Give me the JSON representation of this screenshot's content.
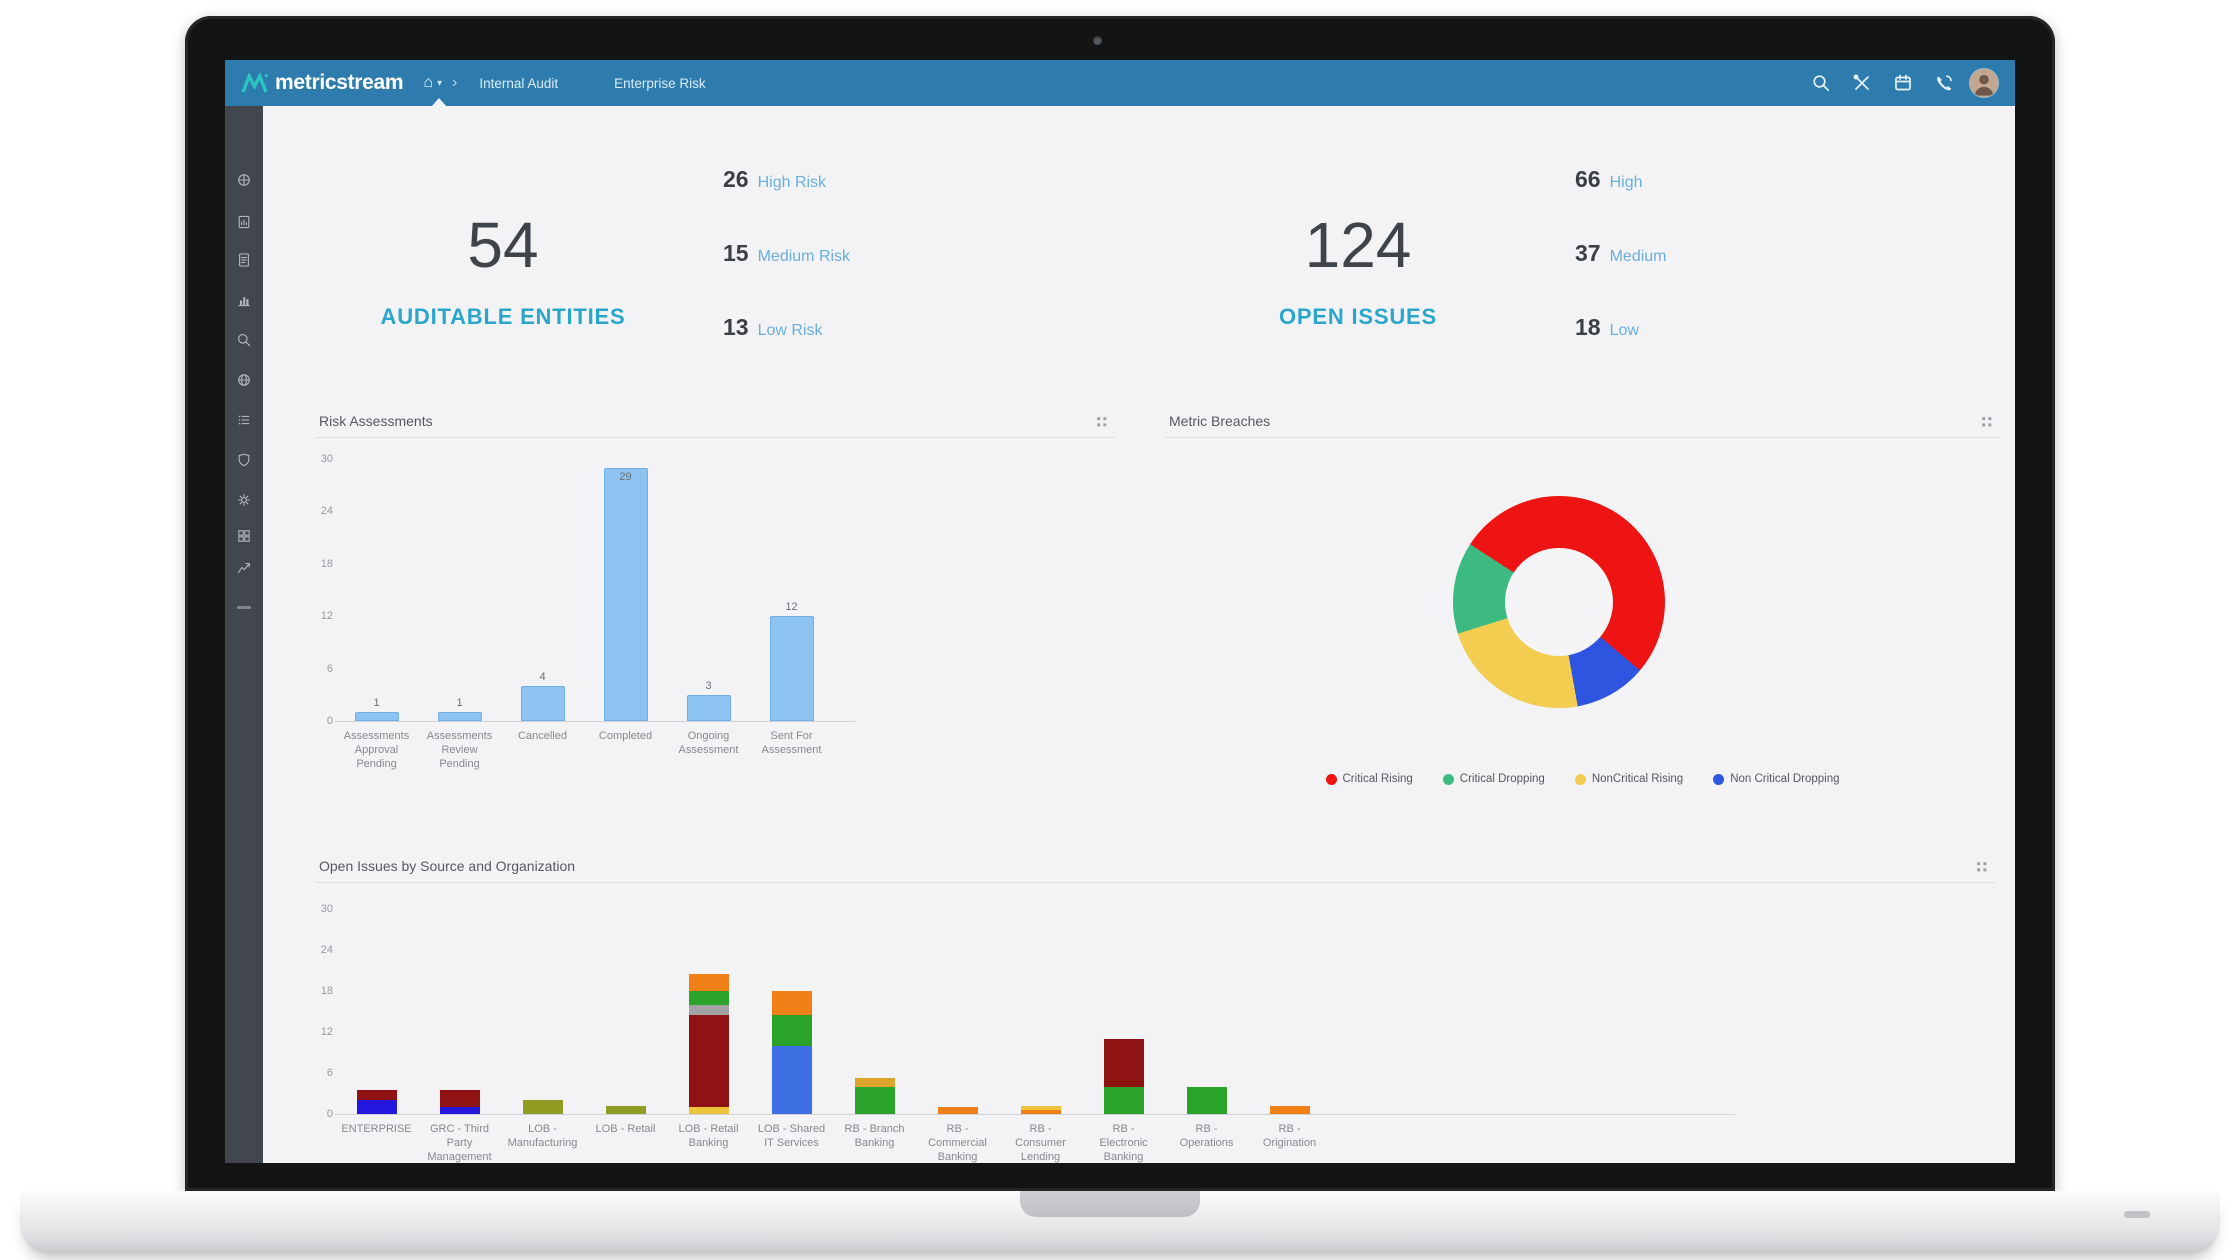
{
  "navbar": {
    "logo_text": "metricstream",
    "nav_items": [
      "Internal Audit",
      "Enterprise Risk"
    ],
    "right_icons": [
      "search",
      "tools",
      "calendar",
      "phone"
    ],
    "colors": {
      "bar": "#2d7cad",
      "logo_teal": "#2cc5c0"
    }
  },
  "sidebar": {
    "icons": [
      "dashboard",
      "report",
      "document",
      "chart",
      "search",
      "globe",
      "list",
      "shield",
      "settings",
      "grid",
      "trend"
    ]
  },
  "kpis": [
    {
      "value": "54",
      "label": "AUDITABLE ENTITIES",
      "breakdown": [
        {
          "value": "26",
          "label": "High Risk"
        },
        {
          "value": "15",
          "label": "Medium Risk"
        },
        {
          "value": "13",
          "label": "Low Risk"
        }
      ]
    },
    {
      "value": "124",
      "label": "OPEN ISSUES",
      "breakdown": [
        {
          "value": "66",
          "label": "High"
        },
        {
          "value": "37",
          "label": "Medium"
        },
        {
          "value": "18",
          "label": "Low"
        }
      ]
    }
  ],
  "chart_data": [
    {
      "type": "bar",
      "title": "Risk Assessments",
      "categories": [
        "Assessments Approval Pending",
        "Assessments Review Pending",
        "Cancelled",
        "Completed",
        "Ongoing Assessment",
        "Sent For Assessment"
      ],
      "values": [
        1,
        1,
        4,
        29,
        3,
        12
      ],
      "ylim": [
        0,
        30
      ],
      "yticks": [
        0,
        6,
        12,
        18,
        24,
        30
      ],
      "bar_color": "#8dc3f0",
      "bar_border": "#70aee6",
      "grid": false,
      "xlabel": "",
      "ylabel": ""
    },
    {
      "type": "pie",
      "title": "Metric Breaches",
      "donut": true,
      "start_angle": -57,
      "slices": [
        {
          "label": "Critical Rising",
          "value": 52,
          "color": "#ee1414"
        },
        {
          "label": "Non Critical Dropping",
          "value": 11,
          "color": "#2d55e0"
        },
        {
          "label": "NonCritical Rising",
          "value": 23,
          "color": "#f2cd4f"
        },
        {
          "label": "Critical Dropping",
          "value": 14,
          "color": "#3cba80"
        }
      ],
      "legend": [
        "Critical Rising",
        "Critical Dropping",
        "NonCritical Rising",
        "Non Critical Dropping"
      ],
      "legend_position": "bottom"
    },
    {
      "type": "bar",
      "subtype": "stacked",
      "title": "Open Issues by Source and Organization",
      "ylim": [
        0,
        30
      ],
      "yticks": [
        0,
        6,
        12,
        18,
        24,
        30
      ],
      "grid": false,
      "palette": {
        "darkblue": "#2317dd",
        "royalblue": "#3e6fe2",
        "darkred": "#8e1312",
        "olive": "#909b21",
        "yellow": "#edc33c",
        "gold": "#dba42c",
        "gray": "#a2a2a4",
        "green": "#2aa32a",
        "orange": "#ef7f16"
      },
      "categories": [
        "ENTERPRISE",
        "GRC - Third Party Management",
        "LOB - Manufacturing",
        "LOB - Retail",
        "LOB - Retail Banking",
        "LOB - Shared IT Services",
        "RB - Branch Banking",
        "RB - Commercial Banking",
        "RB - Consumer Lending",
        "RB - Electronic Banking",
        "RB - Operations",
        "RB - Origination"
      ],
      "bars": [
        [
          {
            "color": "darkblue",
            "value": 2
          },
          {
            "color": "darkred",
            "value": 1.5
          }
        ],
        [
          {
            "color": "darkblue",
            "value": 1
          },
          {
            "color": "darkred",
            "value": 2.5
          }
        ],
        [
          {
            "color": "olive",
            "value": 2
          }
        ],
        [
          {
            "color": "olive",
            "value": 1.2
          }
        ],
        [
          {
            "color": "yellow",
            "value": 1
          },
          {
            "color": "darkred",
            "value": 13.5
          },
          {
            "color": "gray",
            "value": 1.5
          },
          {
            "color": "green",
            "value": 2
          },
          {
            "color": "orange",
            "value": 2.5
          }
        ],
        [
          {
            "color": "royalblue",
            "value": 10
          },
          {
            "color": "green",
            "value": 4.5
          },
          {
            "color": "orange",
            "value": 3.5
          }
        ],
        [
          {
            "color": "green",
            "value": 4
          },
          {
            "color": "gold",
            "value": 1.2
          }
        ],
        [
          {
            "color": "orange",
            "value": 1
          }
        ],
        [
          {
            "color": "orange",
            "value": 0.6
          },
          {
            "color": "yellow",
            "value": 0.6
          }
        ],
        [
          {
            "color": "green",
            "value": 4
          },
          {
            "color": "darkred",
            "value": 7
          }
        ],
        [
          {
            "color": "green",
            "value": 4
          }
        ],
        [
          {
            "color": "orange",
            "value": 1.2
          }
        ]
      ]
    }
  ]
}
